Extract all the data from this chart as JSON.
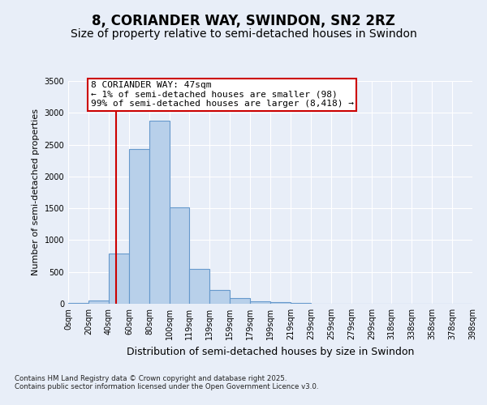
{
  "title": "8, CORIANDER WAY, SWINDON, SN2 2RZ",
  "subtitle": "Size of property relative to semi-detached houses in Swindon",
  "xlabel": "Distribution of semi-detached houses by size in Swindon",
  "ylabel": "Number of semi-detached properties",
  "bin_labels": [
    "0sqm",
    "20sqm",
    "40sqm",
    "60sqm",
    "80sqm",
    "100sqm",
    "119sqm",
    "139sqm",
    "159sqm",
    "179sqm",
    "199sqm",
    "219sqm",
    "239sqm",
    "259sqm",
    "279sqm",
    "299sqm",
    "318sqm",
    "338sqm",
    "358sqm",
    "378sqm",
    "398sqm"
  ],
  "bins_left": [
    0,
    20,
    40,
    60,
    80,
    100,
    119,
    139,
    159,
    179,
    199,
    219,
    239,
    259,
    279,
    299,
    318,
    338,
    358,
    378
  ],
  "bins_right": [
    20,
    40,
    60,
    80,
    100,
    119,
    139,
    159,
    179,
    199,
    219,
    239,
    259,
    279,
    299,
    318,
    338,
    358,
    378,
    398
  ],
  "heights": [
    10,
    50,
    790,
    2430,
    2880,
    1510,
    550,
    215,
    95,
    40,
    20,
    10,
    0,
    0,
    0,
    0,
    0,
    0,
    0,
    0
  ],
  "bar_color": "#b8d0ea",
  "bar_edgecolor": "#6699cc",
  "property_size": 47,
  "property_line_color": "#cc0000",
  "annotation_text": "8 CORIANDER WAY: 47sqm\n← 1% of semi-detached houses are smaller (98)\n99% of semi-detached houses are larger (8,418) →",
  "annotation_box_facecolor": "#ffffff",
  "annotation_box_edgecolor": "#cc0000",
  "ylim": [
    0,
    3500
  ],
  "yticks": [
    0,
    500,
    1000,
    1500,
    2000,
    2500,
    3000,
    3500
  ],
  "background_color": "#e8eef8",
  "footer_text": "Contains HM Land Registry data © Crown copyright and database right 2025.\nContains public sector information licensed under the Open Government Licence v3.0.",
  "title_fontsize": 12,
  "subtitle_fontsize": 10,
  "ylabel_fontsize": 8,
  "xlabel_fontsize": 9,
  "tick_fontsize": 7,
  "annotation_fontsize": 8
}
